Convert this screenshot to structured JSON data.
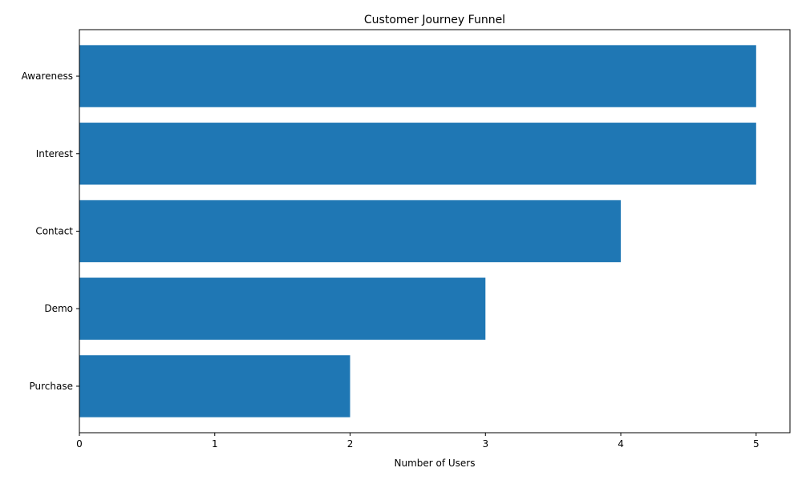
{
  "chart_data": {
    "type": "bar",
    "orientation": "horizontal",
    "title": "Customer Journey Funnel",
    "xlabel": "Number of Users",
    "ylabel": "",
    "categories": [
      "Awareness",
      "Interest",
      "Contact",
      "Demo",
      "Purchase"
    ],
    "values": [
      5,
      5,
      4,
      3,
      2
    ],
    "xlim": [
      0,
      5.25
    ],
    "xticks": [
      0,
      1,
      2,
      3,
      4,
      5
    ],
    "grid": false,
    "legend": "none",
    "bar_color": "#1f77b4"
  }
}
